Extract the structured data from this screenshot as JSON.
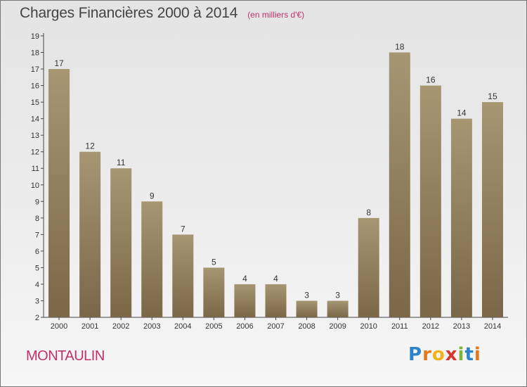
{
  "header": {
    "title": "Charges Financières 2000 à 2014",
    "subtitle": "(en milliers d'€)"
  },
  "footer": {
    "place": "MONTAULIN",
    "logo_letters": [
      "P",
      "r",
      "o",
      "x",
      "i",
      "t",
      "i"
    ]
  },
  "colors": {
    "bar_light": "#a69672",
    "bar_dark": "#7a6748",
    "axis": "#444444",
    "place_text": "#c0306a"
  },
  "chart_data": {
    "type": "bar",
    "title": "Charges Financières 2000 à 2014",
    "subtitle": "(en milliers d'€)",
    "categories": [
      "2000",
      "2001",
      "2002",
      "2003",
      "2004",
      "2005",
      "2006",
      "2007",
      "2008",
      "2009",
      "2010",
      "2011",
      "2012",
      "2013",
      "2014"
    ],
    "values": [
      17,
      12,
      11,
      9,
      7,
      5,
      4,
      4,
      3,
      3,
      8,
      18,
      16,
      14,
      15
    ],
    "ylim": [
      2,
      19
    ],
    "yticks": [
      2,
      3,
      4,
      5,
      6,
      7,
      8,
      9,
      10,
      11,
      12,
      13,
      14,
      15,
      16,
      17,
      18,
      19
    ],
    "xlabel": "",
    "ylabel": "",
    "grid": false,
    "data_labels": true
  }
}
